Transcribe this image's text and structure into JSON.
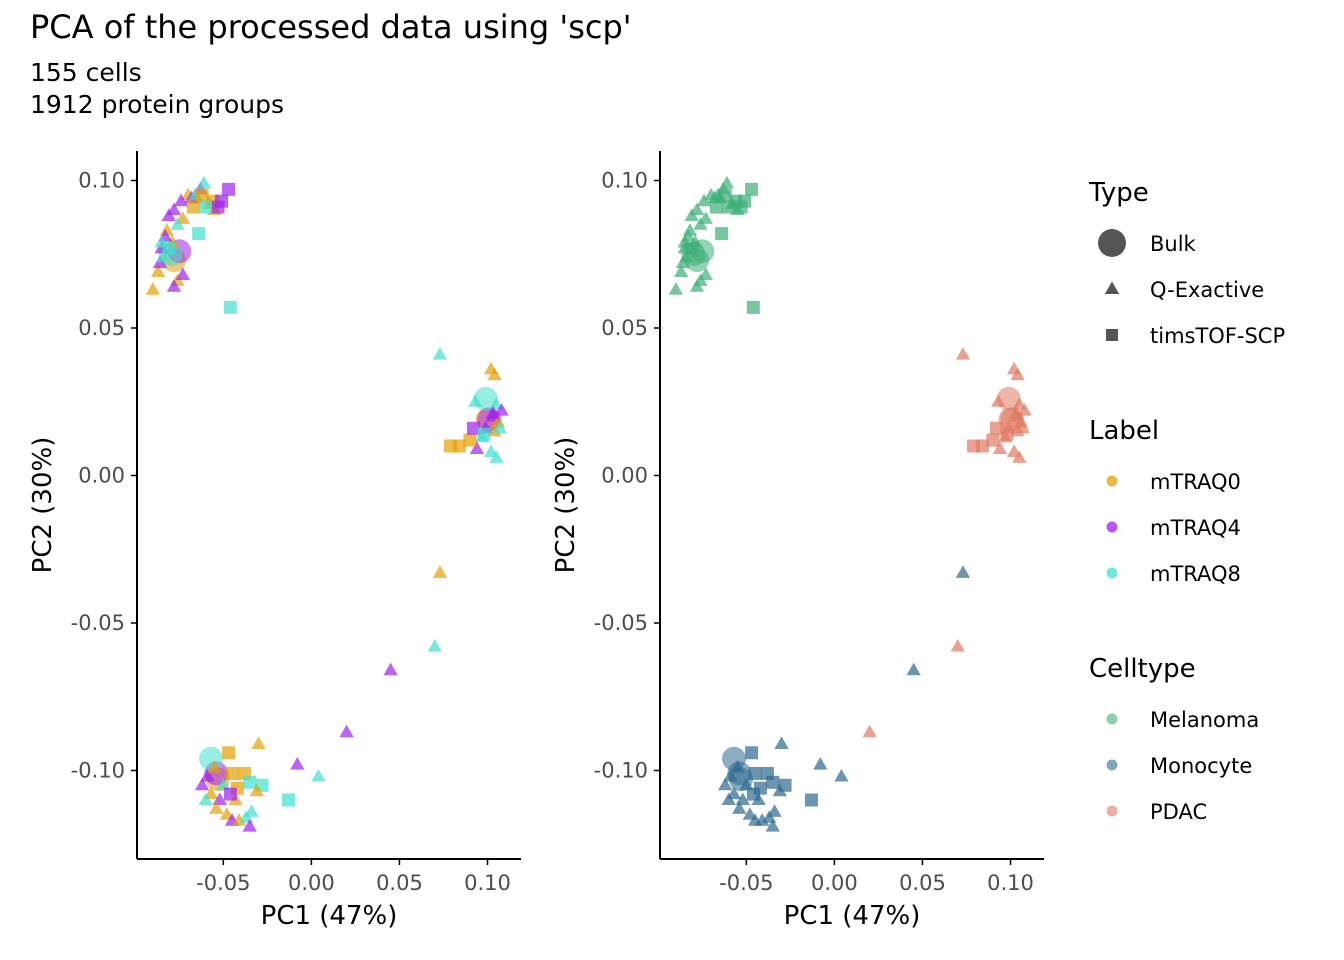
{
  "title": "PCA of the processed data using 'scp'",
  "subtitle_lines": [
    "155 cells",
    "1912 protein groups"
  ],
  "colors": {
    "mTRAQ0": "#E69F00",
    "mTRAQ4": "#A020F0",
    "mTRAQ8": "#40E0D0",
    "Melanoma": "#3CAF78",
    "Monocyte": "#2D6A8F",
    "PDAC": "#E07A62",
    "legend_shape": "#555555",
    "axis": "#000000",
    "tick_text": "#4D4D4D"
  },
  "legend": {
    "type": {
      "title": "Type",
      "items": [
        {
          "label": "Bulk",
          "shape": "circle"
        },
        {
          "label": "Q-Exactive",
          "shape": "triangle"
        },
        {
          "label": "timsTOF-SCP",
          "shape": "square"
        }
      ]
    },
    "label": {
      "title": "Label",
      "items": [
        "mTRAQ0",
        "mTRAQ4",
        "mTRAQ8"
      ]
    },
    "celltype": {
      "title": "Celltype",
      "items": [
        "Melanoma",
        "Monocyte",
        "PDAC"
      ]
    }
  },
  "chart_data": [
    {
      "type": "scatter",
      "panel": "colored by Label",
      "xlabel": "PC1 (47%)",
      "ylabel": "PC2 (30%)",
      "xlim": [
        -0.099,
        0.119
      ],
      "ylim": [
        -0.13,
        0.11
      ],
      "xticks": [
        -0.05,
        0.0,
        0.05,
        0.1
      ],
      "xtick_labels": [
        "-0.05",
        "0.00",
        "0.05",
        "0.10"
      ],
      "yticks": [
        -0.1,
        -0.05,
        0.0,
        0.05,
        0.1
      ],
      "ytick_labels": [
        "-0.10",
        "-0.05",
        "0.00",
        "0.05",
        "0.10"
      ],
      "grid": false,
      "color_by": "label"
    },
    {
      "type": "scatter",
      "panel": "colored by Celltype",
      "xlabel": "PC1 (47%)",
      "ylabel": "PC2 (30%)",
      "xlim": [
        -0.099,
        0.119
      ],
      "ylim": [
        -0.13,
        0.11
      ],
      "xticks": [
        -0.05,
        0.0,
        0.05,
        0.1
      ],
      "xtick_labels": [
        "-0.05",
        "0.00",
        "0.05",
        "0.10"
      ],
      "yticks": [
        -0.1,
        -0.05,
        0.0,
        0.05,
        0.1
      ],
      "ytick_labels": [
        "-0.10",
        "-0.05",
        "0.00",
        "0.05",
        "0.10"
      ],
      "grid": false,
      "color_by": "celltype"
    }
  ],
  "points": [
    {
      "x": -0.078,
      "y": 0.073,
      "shape": "circle",
      "label": "mTRAQ0",
      "celltype": "Melanoma"
    },
    {
      "x": -0.075,
      "y": 0.076,
      "shape": "circle",
      "label": "mTRAQ4",
      "celltype": "Melanoma"
    },
    {
      "x": -0.08,
      "y": 0.075,
      "shape": "circle",
      "label": "mTRAQ8",
      "celltype": "Melanoma"
    },
    {
      "x": 0.1,
      "y": 0.019,
      "shape": "circle",
      "label": "mTRAQ0",
      "celltype": "PDAC"
    },
    {
      "x": 0.101,
      "y": 0.019,
      "shape": "circle",
      "label": "mTRAQ4",
      "celltype": "PDAC"
    },
    {
      "x": 0.099,
      "y": 0.026,
      "shape": "circle",
      "label": "mTRAQ8",
      "celltype": "PDAC"
    },
    {
      "x": -0.053,
      "y": -0.103,
      "shape": "circle",
      "label": "mTRAQ0",
      "celltype": "Monocyte"
    },
    {
      "x": -0.054,
      "y": -0.101,
      "shape": "circle",
      "label": "mTRAQ4",
      "celltype": "Monocyte"
    },
    {
      "x": -0.057,
      "y": -0.096,
      "shape": "circle",
      "label": "mTRAQ8",
      "celltype": "Monocyte"
    },
    {
      "x": -0.065,
      "y": 0.094,
      "shape": "triangle",
      "label": "mTRAQ0",
      "celltype": "Melanoma"
    },
    {
      "x": -0.07,
      "y": 0.095,
      "shape": "triangle",
      "label": "mTRAQ0",
      "celltype": "Melanoma"
    },
    {
      "x": -0.058,
      "y": 0.092,
      "shape": "triangle",
      "label": "mTRAQ0",
      "celltype": "Melanoma"
    },
    {
      "x": -0.055,
      "y": 0.09,
      "shape": "triangle",
      "label": "mTRAQ0",
      "celltype": "Melanoma"
    },
    {
      "x": -0.073,
      "y": 0.087,
      "shape": "triangle",
      "label": "mTRAQ0",
      "celltype": "Melanoma"
    },
    {
      "x": -0.082,
      "y": 0.083,
      "shape": "triangle",
      "label": "mTRAQ0",
      "celltype": "Melanoma"
    },
    {
      "x": -0.09,
      "y": 0.063,
      "shape": "triangle",
      "label": "mTRAQ0",
      "celltype": "Melanoma"
    },
    {
      "x": -0.087,
      "y": 0.069,
      "shape": "triangle",
      "label": "mTRAQ0",
      "celltype": "Melanoma"
    },
    {
      "x": -0.076,
      "y": 0.066,
      "shape": "triangle",
      "label": "mTRAQ0",
      "celltype": "Melanoma"
    },
    {
      "x": -0.079,
      "y": 0.079,
      "shape": "triangle",
      "label": "mTRAQ0",
      "celltype": "Melanoma"
    },
    {
      "x": -0.063,
      "y": 0.097,
      "shape": "triangle",
      "label": "mTRAQ4",
      "celltype": "Melanoma"
    },
    {
      "x": -0.068,
      "y": 0.094,
      "shape": "triangle",
      "label": "mTRAQ4",
      "celltype": "Melanoma"
    },
    {
      "x": -0.074,
      "y": 0.093,
      "shape": "triangle",
      "label": "mTRAQ4",
      "celltype": "Melanoma"
    },
    {
      "x": -0.078,
      "y": 0.09,
      "shape": "triangle",
      "label": "mTRAQ4",
      "celltype": "Melanoma"
    },
    {
      "x": -0.081,
      "y": 0.088,
      "shape": "triangle",
      "label": "mTRAQ4",
      "celltype": "Melanoma"
    },
    {
      "x": -0.083,
      "y": 0.081,
      "shape": "triangle",
      "label": "mTRAQ4",
      "celltype": "Melanoma"
    },
    {
      "x": -0.085,
      "y": 0.077,
      "shape": "triangle",
      "label": "mTRAQ4",
      "celltype": "Melanoma"
    },
    {
      "x": -0.086,
      "y": 0.072,
      "shape": "triangle",
      "label": "mTRAQ4",
      "celltype": "Melanoma"
    },
    {
      "x": -0.078,
      "y": 0.064,
      "shape": "triangle",
      "label": "mTRAQ4",
      "celltype": "Melanoma"
    },
    {
      "x": -0.073,
      "y": 0.068,
      "shape": "triangle",
      "label": "mTRAQ4",
      "celltype": "Melanoma"
    },
    {
      "x": -0.061,
      "y": 0.099,
      "shape": "triangle",
      "label": "mTRAQ8",
      "celltype": "Melanoma"
    },
    {
      "x": -0.066,
      "y": 0.095,
      "shape": "triangle",
      "label": "mTRAQ8",
      "celltype": "Melanoma"
    },
    {
      "x": -0.076,
      "y": 0.085,
      "shape": "triangle",
      "label": "mTRAQ8",
      "celltype": "Melanoma"
    },
    {
      "x": -0.084,
      "y": 0.074,
      "shape": "triangle",
      "label": "mTRAQ8",
      "celltype": "Melanoma"
    },
    {
      "x": -0.085,
      "y": 0.079,
      "shape": "triangle",
      "label": "mTRAQ8",
      "celltype": "Melanoma"
    },
    {
      "x": -0.062,
      "y": 0.095,
      "shape": "square",
      "label": "mTRAQ0",
      "celltype": "Melanoma"
    },
    {
      "x": -0.067,
      "y": 0.091,
      "shape": "square",
      "label": "mTRAQ0",
      "celltype": "Melanoma"
    },
    {
      "x": -0.056,
      "y": 0.093,
      "shape": "square",
      "label": "mTRAQ0",
      "celltype": "Melanoma"
    },
    {
      "x": -0.051,
      "y": 0.093,
      "shape": "square",
      "label": "mTRAQ4",
      "celltype": "Melanoma"
    },
    {
      "x": -0.047,
      "y": 0.097,
      "shape": "square",
      "label": "mTRAQ4",
      "celltype": "Melanoma"
    },
    {
      "x": -0.053,
      "y": 0.091,
      "shape": "square",
      "label": "mTRAQ4",
      "celltype": "Melanoma"
    },
    {
      "x": -0.06,
      "y": 0.091,
      "shape": "square",
      "label": "mTRAQ8",
      "celltype": "Melanoma"
    },
    {
      "x": -0.064,
      "y": 0.082,
      "shape": "square",
      "label": "mTRAQ8",
      "celltype": "Melanoma"
    },
    {
      "x": -0.081,
      "y": 0.077,
      "shape": "square",
      "label": "mTRAQ8",
      "celltype": "Melanoma"
    },
    {
      "x": -0.046,
      "y": 0.057,
      "shape": "square",
      "label": "mTRAQ8",
      "celltype": "Melanoma"
    },
    {
      "x": 0.073,
      "y": 0.041,
      "shape": "triangle",
      "label": "mTRAQ8",
      "celltype": "PDAC"
    },
    {
      "x": 0.102,
      "y": 0.036,
      "shape": "triangle",
      "label": "mTRAQ0",
      "celltype": "PDAC"
    },
    {
      "x": 0.104,
      "y": 0.034,
      "shape": "triangle",
      "label": "mTRAQ0",
      "celltype": "PDAC"
    },
    {
      "x": 0.093,
      "y": 0.025,
      "shape": "triangle",
      "label": "mTRAQ8",
      "celltype": "PDAC"
    },
    {
      "x": 0.105,
      "y": 0.024,
      "shape": "triangle",
      "label": "mTRAQ8",
      "celltype": "PDAC"
    },
    {
      "x": 0.108,
      "y": 0.022,
      "shape": "triangle",
      "label": "mTRAQ4",
      "celltype": "PDAC"
    },
    {
      "x": 0.103,
      "y": 0.02,
      "shape": "triangle",
      "label": "mTRAQ4",
      "celltype": "PDAC"
    },
    {
      "x": 0.106,
      "y": 0.018,
      "shape": "triangle",
      "label": "mTRAQ0",
      "celltype": "PDAC"
    },
    {
      "x": 0.099,
      "y": 0.016,
      "shape": "triangle",
      "label": "mTRAQ4",
      "celltype": "PDAC"
    },
    {
      "x": 0.104,
      "y": 0.015,
      "shape": "triangle",
      "label": "mTRAQ0",
      "celltype": "PDAC"
    },
    {
      "x": 0.097,
      "y": 0.013,
      "shape": "triangle",
      "label": "mTRAQ8",
      "celltype": "PDAC"
    },
    {
      "x": 0.107,
      "y": 0.016,
      "shape": "triangle",
      "label": "mTRAQ8",
      "celltype": "PDAC"
    },
    {
      "x": 0.094,
      "y": 0.009,
      "shape": "triangle",
      "label": "mTRAQ4",
      "celltype": "PDAC"
    },
    {
      "x": 0.102,
      "y": 0.008,
      "shape": "triangle",
      "label": "mTRAQ8",
      "celltype": "PDAC"
    },
    {
      "x": 0.105,
      "y": 0.006,
      "shape": "triangle",
      "label": "mTRAQ8",
      "celltype": "PDAC"
    },
    {
      "x": 0.103,
      "y": 0.021,
      "shape": "triangle",
      "label": "mTRAQ4",
      "celltype": "PDAC"
    },
    {
      "x": 0.079,
      "y": 0.01,
      "shape": "square",
      "label": "mTRAQ0",
      "celltype": "PDAC"
    },
    {
      "x": 0.084,
      "y": 0.01,
      "shape": "square",
      "label": "mTRAQ0",
      "celltype": "PDAC"
    },
    {
      "x": 0.09,
      "y": 0.012,
      "shape": "square",
      "label": "mTRAQ0",
      "celltype": "PDAC"
    },
    {
      "x": 0.092,
      "y": 0.016,
      "shape": "square",
      "label": "mTRAQ4",
      "celltype": "PDAC"
    },
    {
      "x": 0.098,
      "y": 0.014,
      "shape": "square",
      "label": "mTRAQ8",
      "celltype": "PDAC"
    },
    {
      "x": 0.073,
      "y": -0.033,
      "shape": "triangle",
      "label": "mTRAQ0",
      "celltype": "Monocyte"
    },
    {
      "x": 0.07,
      "y": -0.058,
      "shape": "triangle",
      "label": "mTRAQ8",
      "celltype": "PDAC"
    },
    {
      "x": 0.045,
      "y": -0.066,
      "shape": "triangle",
      "label": "mTRAQ4",
      "celltype": "Monocyte"
    },
    {
      "x": 0.02,
      "y": -0.087,
      "shape": "triangle",
      "label": "mTRAQ4",
      "celltype": "PDAC"
    },
    {
      "x": 0.004,
      "y": -0.102,
      "shape": "triangle",
      "label": "mTRAQ8",
      "celltype": "Monocyte"
    },
    {
      "x": -0.008,
      "y": -0.098,
      "shape": "triangle",
      "label": "mTRAQ4",
      "celltype": "Monocyte"
    },
    {
      "x": -0.013,
      "y": -0.11,
      "shape": "square",
      "label": "mTRAQ8",
      "celltype": "Monocyte"
    },
    {
      "x": -0.03,
      "y": -0.091,
      "shape": "triangle",
      "label": "mTRAQ0",
      "celltype": "Monocyte"
    },
    {
      "x": -0.047,
      "y": -0.094,
      "shape": "square",
      "label": "mTRAQ0",
      "celltype": "Monocyte"
    },
    {
      "x": -0.045,
      "y": -0.101,
      "shape": "square",
      "label": "mTRAQ0",
      "celltype": "Monocyte"
    },
    {
      "x": -0.038,
      "y": -0.101,
      "shape": "square",
      "label": "mTRAQ0",
      "celltype": "Monocyte"
    },
    {
      "x": -0.042,
      "y": -0.106,
      "shape": "square",
      "label": "mTRAQ0",
      "celltype": "Monocyte"
    },
    {
      "x": -0.035,
      "y": -0.104,
      "shape": "square",
      "label": "mTRAQ8",
      "celltype": "Monocyte"
    },
    {
      "x": -0.028,
      "y": -0.105,
      "shape": "square",
      "label": "mTRAQ8",
      "celltype": "Monocyte"
    },
    {
      "x": -0.031,
      "y": -0.107,
      "shape": "triangle",
      "label": "mTRAQ0",
      "celltype": "Monocyte"
    },
    {
      "x": -0.059,
      "y": -0.102,
      "shape": "triangle",
      "label": "mTRAQ4",
      "celltype": "Monocyte"
    },
    {
      "x": -0.062,
      "y": -0.105,
      "shape": "triangle",
      "label": "mTRAQ4",
      "celltype": "Monocyte"
    },
    {
      "x": -0.057,
      "y": -0.108,
      "shape": "triangle",
      "label": "mTRAQ0",
      "celltype": "Monocyte"
    },
    {
      "x": -0.052,
      "y": -0.11,
      "shape": "triangle",
      "label": "mTRAQ4",
      "celltype": "Monocyte"
    },
    {
      "x": -0.054,
      "y": -0.113,
      "shape": "triangle",
      "label": "mTRAQ0",
      "celltype": "Monocyte"
    },
    {
      "x": -0.048,
      "y": -0.115,
      "shape": "triangle",
      "label": "mTRAQ0",
      "celltype": "Monocyte"
    },
    {
      "x": -0.045,
      "y": -0.117,
      "shape": "triangle",
      "label": "mTRAQ4",
      "celltype": "Monocyte"
    },
    {
      "x": -0.041,
      "y": -0.117,
      "shape": "triangle",
      "label": "mTRAQ0",
      "celltype": "Monocyte"
    },
    {
      "x": -0.037,
      "y": -0.116,
      "shape": "triangle",
      "label": "mTRAQ8",
      "celltype": "Monocyte"
    },
    {
      "x": -0.035,
      "y": -0.119,
      "shape": "triangle",
      "label": "mTRAQ4",
      "celltype": "Monocyte"
    },
    {
      "x": -0.034,
      "y": -0.114,
      "shape": "triangle",
      "label": "mTRAQ8",
      "celltype": "Monocyte"
    },
    {
      "x": -0.06,
      "y": -0.11,
      "shape": "triangle",
      "label": "mTRAQ8",
      "celltype": "Monocyte"
    },
    {
      "x": -0.05,
      "y": -0.105,
      "shape": "triangle",
      "label": "mTRAQ8",
      "celltype": "Monocyte"
    },
    {
      "x": -0.043,
      "y": -0.11,
      "shape": "triangle",
      "label": "mTRAQ0",
      "celltype": "Monocyte"
    },
    {
      "x": -0.055,
      "y": -0.099,
      "shape": "triangle",
      "label": "mTRAQ0",
      "celltype": "Monocyte"
    },
    {
      "x": -0.046,
      "y": -0.108,
      "shape": "square",
      "label": "mTRAQ4",
      "celltype": "Monocyte"
    }
  ]
}
